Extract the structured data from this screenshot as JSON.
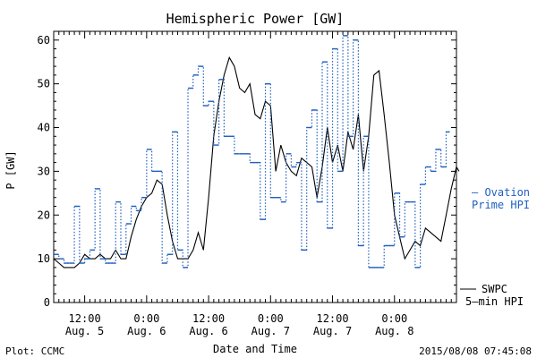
{
  "chart_data": {
    "type": "line",
    "title": "Hemispheric Power [GW]",
    "ylabel": "P [GW]",
    "xlabel": "Date and Time",
    "ylim": [
      0,
      62
    ],
    "xlim": [
      0,
      78
    ],
    "yticks": [
      0,
      10,
      20,
      30,
      40,
      50,
      60
    ],
    "xticks": [
      {
        "x": 6,
        "time": "12:00",
        "date": "Aug. 5"
      },
      {
        "x": 18,
        "time": "0:00",
        "date": "Aug. 6"
      },
      {
        "x": 30,
        "time": "12:00",
        "date": "Aug. 6"
      },
      {
        "x": 42,
        "time": "0:00",
        "date": "Aug. 7"
      },
      {
        "x": 54,
        "time": "12:00",
        "date": "Aug. 7"
      },
      {
        "x": 66,
        "time": "0:00",
        "date": "Aug. 8"
      }
    ],
    "grid": false,
    "series": [
      {
        "name": "SWPC 5-min HPI",
        "color": "#000000",
        "style": "solid",
        "points": [
          [
            0,
            10
          ],
          [
            1,
            9
          ],
          [
            2,
            8
          ],
          [
            3,
            8
          ],
          [
            4,
            8
          ],
          [
            5,
            9
          ],
          [
            6,
            11
          ],
          [
            7,
            10
          ],
          [
            8,
            10
          ],
          [
            9,
            11
          ],
          [
            10,
            10
          ],
          [
            11,
            10
          ],
          [
            12,
            12
          ],
          [
            13,
            10
          ],
          [
            14,
            10
          ],
          [
            15,
            15
          ],
          [
            16,
            19
          ],
          [
            17,
            22
          ],
          [
            18,
            24
          ],
          [
            19,
            25
          ],
          [
            20,
            28
          ],
          [
            21,
            27
          ],
          [
            22,
            20
          ],
          [
            23,
            14
          ],
          [
            24,
            10
          ],
          [
            25,
            10
          ],
          [
            26,
            10
          ],
          [
            27,
            12
          ],
          [
            28,
            16
          ],
          [
            29,
            12
          ],
          [
            30,
            24
          ],
          [
            31,
            38
          ],
          [
            32,
            46
          ],
          [
            33,
            52
          ],
          [
            34,
            56
          ],
          [
            35,
            54
          ],
          [
            36,
            49
          ],
          [
            37,
            48
          ],
          [
            38,
            50
          ],
          [
            39,
            43
          ],
          [
            40,
            42
          ],
          [
            41,
            46
          ],
          [
            42,
            45
          ],
          [
            43,
            30
          ],
          [
            44,
            36
          ],
          [
            45,
            32
          ],
          [
            46,
            30
          ],
          [
            47,
            29
          ],
          [
            48,
            33
          ],
          [
            49,
            32
          ],
          [
            50,
            31
          ],
          [
            51,
            24
          ],
          [
            52,
            31
          ],
          [
            53,
            40
          ],
          [
            54,
            32
          ],
          [
            55,
            36
          ],
          [
            56,
            30
          ],
          [
            57,
            39
          ],
          [
            58,
            35
          ],
          [
            59,
            43
          ],
          [
            60,
            30
          ],
          [
            61,
            38
          ],
          [
            62,
            52
          ],
          [
            63,
            53
          ],
          [
            64,
            43
          ],
          [
            65,
            32
          ],
          [
            66,
            20
          ],
          [
            67,
            15
          ],
          [
            68,
            10
          ],
          [
            69,
            12
          ],
          [
            70,
            14
          ],
          [
            71,
            13
          ],
          [
            72,
            17
          ],
          [
            73,
            16
          ],
          [
            74,
            15
          ],
          [
            75,
            14
          ],
          [
            76,
            20
          ],
          [
            77,
            26
          ],
          [
            78,
            31
          ],
          [
            78.5,
            30
          ]
        ]
      },
      {
        "name": "Ovation Prime HPI",
        "color": "#1f5fbf",
        "style": "dotted-step",
        "points": [
          [
            0,
            11
          ],
          [
            1,
            10
          ],
          [
            2,
            9
          ],
          [
            3,
            9
          ],
          [
            4,
            22
          ],
          [
            5,
            9
          ],
          [
            6,
            10
          ],
          [
            7,
            12
          ],
          [
            8,
            26
          ],
          [
            9,
            10
          ],
          [
            10,
            9
          ],
          [
            11,
            9
          ],
          [
            12,
            23
          ],
          [
            13,
            11
          ],
          [
            14,
            18
          ],
          [
            15,
            22
          ],
          [
            16,
            21
          ],
          [
            17,
            24
          ],
          [
            18,
            35
          ],
          [
            19,
            30
          ],
          [
            20,
            30
          ],
          [
            21,
            9
          ],
          [
            22,
            11
          ],
          [
            23,
            39
          ],
          [
            24,
            12
          ],
          [
            25,
            8
          ],
          [
            26,
            49
          ],
          [
            27,
            52
          ],
          [
            28,
            54
          ],
          [
            29,
            45
          ],
          [
            30,
            46
          ],
          [
            31,
            36
          ],
          [
            32,
            51
          ],
          [
            33,
            38
          ],
          [
            34,
            38
          ],
          [
            35,
            34
          ],
          [
            36,
            34
          ],
          [
            37,
            34
          ],
          [
            38,
            32
          ],
          [
            39,
            32
          ],
          [
            40,
            19
          ],
          [
            41,
            50
          ],
          [
            42,
            24
          ],
          [
            43,
            24
          ],
          [
            44,
            23
          ],
          [
            45,
            34
          ],
          [
            46,
            31
          ],
          [
            47,
            32
          ],
          [
            48,
            12
          ],
          [
            49,
            40
          ],
          [
            50,
            44
          ],
          [
            51,
            23
          ],
          [
            52,
            55
          ],
          [
            53,
            17
          ],
          [
            54,
            58
          ],
          [
            55,
            30
          ],
          [
            56,
            61
          ],
          [
            57,
            38
          ],
          [
            58,
            60
          ],
          [
            59,
            13
          ],
          [
            60,
            38
          ],
          [
            61,
            8
          ],
          [
            62,
            8
          ],
          [
            63,
            8
          ],
          [
            64,
            13
          ],
          [
            65,
            13
          ],
          [
            66,
            25
          ],
          [
            67,
            15
          ],
          [
            68,
            23
          ],
          [
            69,
            23
          ],
          [
            70,
            8
          ],
          [
            71,
            27
          ],
          [
            72,
            31
          ],
          [
            73,
            30
          ],
          [
            74,
            35
          ],
          [
            75,
            31
          ],
          [
            76,
            39
          ]
        ]
      }
    ],
    "legend": {
      "ovation": [
        "— Ovation",
        "Prime HPI"
      ],
      "swpc": [
        "SWPC",
        "5–min HPI"
      ]
    }
  },
  "footer": {
    "left": "Plot: CCMC",
    "right": "2015/08/08 07:45:08"
  }
}
